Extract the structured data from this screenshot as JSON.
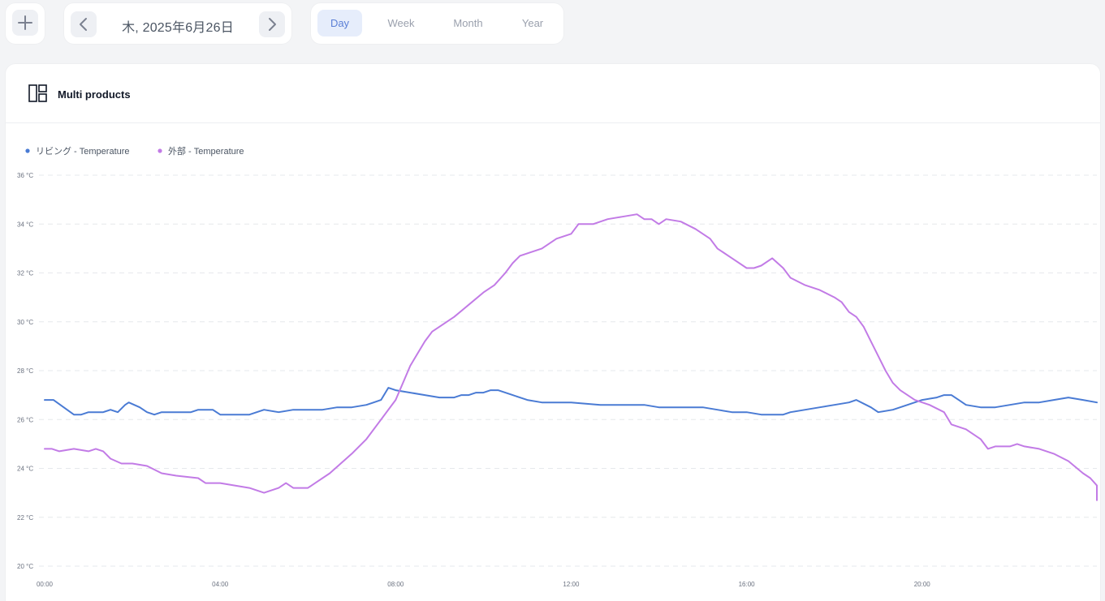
{
  "toolbar": {
    "date_label": "木, 2025年6月26日",
    "tabs": [
      {
        "label": "Day",
        "active": true
      },
      {
        "label": "Week",
        "active": false
      },
      {
        "label": "Month",
        "active": false
      },
      {
        "label": "Year",
        "active": false
      }
    ]
  },
  "panel": {
    "title": "Multi products",
    "icon": "layout-panels-icon"
  },
  "colors": {
    "series_living": "#4a7bd4",
    "series_outside": "#c27be6",
    "grid": "#e6e8ec",
    "active_tab_bg": "#e6edfb"
  },
  "chart_data": {
    "type": "line",
    "x_unit": "hours",
    "y_unit": "°C",
    "xlim": [
      "00:00",
      "23:59"
    ],
    "ylim": [
      20,
      36
    ],
    "x_ticks": [
      "00:00",
      "04:00",
      "08:00",
      "12:00",
      "16:00",
      "20:00"
    ],
    "y_ticks": [
      "20 °C",
      "22 °C",
      "24 °C",
      "26 °C",
      "28 °C",
      "30 °C",
      "32 °C",
      "34 °C",
      "36 °C"
    ],
    "grid": true,
    "legend_position": "top-left",
    "series": [
      {
        "name": "リビング - Temperature",
        "color": "#4a7bd4",
        "points": [
          [
            "00:00",
            26.8
          ],
          [
            "00:12",
            26.8
          ],
          [
            "00:40",
            26.2
          ],
          [
            "00:50",
            26.2
          ],
          [
            "01:00",
            26.3
          ],
          [
            "01:20",
            26.3
          ],
          [
            "01:30",
            26.4
          ],
          [
            "01:40",
            26.3
          ],
          [
            "01:50",
            26.6
          ],
          [
            "01:55",
            26.7
          ],
          [
            "02:10",
            26.5
          ],
          [
            "02:20",
            26.3
          ],
          [
            "02:30",
            26.2
          ],
          [
            "02:40",
            26.3
          ],
          [
            "03:00",
            26.3
          ],
          [
            "03:20",
            26.3
          ],
          [
            "03:30",
            26.4
          ],
          [
            "03:50",
            26.4
          ],
          [
            "04:00",
            26.2
          ],
          [
            "04:40",
            26.2
          ],
          [
            "05:00",
            26.4
          ],
          [
            "05:20",
            26.3
          ],
          [
            "05:40",
            26.4
          ],
          [
            "06:00",
            26.4
          ],
          [
            "06:20",
            26.4
          ],
          [
            "06:40",
            26.5
          ],
          [
            "07:00",
            26.5
          ],
          [
            "07:20",
            26.6
          ],
          [
            "07:30",
            26.7
          ],
          [
            "07:40",
            26.8
          ],
          [
            "07:50",
            27.3
          ],
          [
            "08:00",
            27.2
          ],
          [
            "08:20",
            27.1
          ],
          [
            "08:40",
            27.0
          ],
          [
            "09:00",
            26.9
          ],
          [
            "09:20",
            26.9
          ],
          [
            "09:30",
            27.0
          ],
          [
            "09:40",
            27.0
          ],
          [
            "09:50",
            27.1
          ],
          [
            "10:00",
            27.1
          ],
          [
            "10:10",
            27.2
          ],
          [
            "10:20",
            27.2
          ],
          [
            "10:40",
            27.0
          ],
          [
            "11:00",
            26.8
          ],
          [
            "11:20",
            26.7
          ],
          [
            "12:00",
            26.7
          ],
          [
            "12:40",
            26.6
          ],
          [
            "13:00",
            26.6
          ],
          [
            "13:20",
            26.6
          ],
          [
            "13:40",
            26.6
          ],
          [
            "14:00",
            26.5
          ],
          [
            "14:40",
            26.5
          ],
          [
            "15:00",
            26.5
          ],
          [
            "15:20",
            26.4
          ],
          [
            "15:40",
            26.3
          ],
          [
            "16:00",
            26.3
          ],
          [
            "16:20",
            26.2
          ],
          [
            "16:50",
            26.2
          ],
          [
            "17:00",
            26.3
          ],
          [
            "17:20",
            26.4
          ],
          [
            "17:40",
            26.5
          ],
          [
            "18:00",
            26.6
          ],
          [
            "18:20",
            26.7
          ],
          [
            "18:30",
            26.8
          ],
          [
            "18:50",
            26.5
          ],
          [
            "19:00",
            26.3
          ],
          [
            "19:20",
            26.4
          ],
          [
            "19:40",
            26.6
          ],
          [
            "20:00",
            26.8
          ],
          [
            "20:20",
            26.9
          ],
          [
            "20:30",
            27.0
          ],
          [
            "20:40",
            27.0
          ],
          [
            "20:50",
            26.8
          ],
          [
            "21:00",
            26.6
          ],
          [
            "21:20",
            26.5
          ],
          [
            "21:40",
            26.5
          ],
          [
            "22:00",
            26.6
          ],
          [
            "22:20",
            26.7
          ],
          [
            "22:40",
            26.7
          ],
          [
            "23:00",
            26.8
          ],
          [
            "23:20",
            26.9
          ],
          [
            "23:40",
            26.8
          ],
          [
            "23:59",
            26.7
          ]
        ]
      },
      {
        "name": "外部 - Temperature",
        "color": "#c27be6",
        "points": [
          [
            "00:00",
            24.8
          ],
          [
            "00:10",
            24.8
          ],
          [
            "00:20",
            24.7
          ],
          [
            "00:40",
            24.8
          ],
          [
            "01:00",
            24.7
          ],
          [
            "01:10",
            24.8
          ],
          [
            "01:20",
            24.7
          ],
          [
            "01:30",
            24.4
          ],
          [
            "01:45",
            24.2
          ],
          [
            "02:00",
            24.2
          ],
          [
            "02:20",
            24.1
          ],
          [
            "02:40",
            23.8
          ],
          [
            "03:00",
            23.7
          ],
          [
            "03:30",
            23.6
          ],
          [
            "03:40",
            23.4
          ],
          [
            "04:00",
            23.4
          ],
          [
            "04:20",
            23.3
          ],
          [
            "04:40",
            23.2
          ],
          [
            "05:00",
            23.0
          ],
          [
            "05:20",
            23.2
          ],
          [
            "05:30",
            23.4
          ],
          [
            "05:40",
            23.2
          ],
          [
            "06:00",
            23.2
          ],
          [
            "06:10",
            23.4
          ],
          [
            "06:30",
            23.8
          ],
          [
            "07:00",
            24.6
          ],
          [
            "07:20",
            25.2
          ],
          [
            "07:40",
            26.0
          ],
          [
            "08:00",
            26.8
          ],
          [
            "08:10",
            27.5
          ],
          [
            "08:20",
            28.2
          ],
          [
            "08:30",
            28.7
          ],
          [
            "08:40",
            29.2
          ],
          [
            "08:50",
            29.6
          ],
          [
            "09:00",
            29.8
          ],
          [
            "09:20",
            30.2
          ],
          [
            "09:40",
            30.7
          ],
          [
            "10:00",
            31.2
          ],
          [
            "10:15",
            31.5
          ],
          [
            "10:30",
            32.0
          ],
          [
            "10:40",
            32.4
          ],
          [
            "10:50",
            32.7
          ],
          [
            "11:00",
            32.8
          ],
          [
            "11:20",
            33.0
          ],
          [
            "11:40",
            33.4
          ],
          [
            "12:00",
            33.6
          ],
          [
            "12:10",
            34.0
          ],
          [
            "12:30",
            34.0
          ],
          [
            "12:50",
            34.2
          ],
          [
            "13:10",
            34.3
          ],
          [
            "13:30",
            34.4
          ],
          [
            "13:40",
            34.2
          ],
          [
            "13:50",
            34.2
          ],
          [
            "14:00",
            34.0
          ],
          [
            "14:10",
            34.2
          ],
          [
            "14:30",
            34.1
          ],
          [
            "14:50",
            33.8
          ],
          [
            "15:10",
            33.4
          ],
          [
            "15:20",
            33.0
          ],
          [
            "15:40",
            32.6
          ],
          [
            "16:00",
            32.2
          ],
          [
            "16:10",
            32.2
          ],
          [
            "16:20",
            32.3
          ],
          [
            "16:35",
            32.6
          ],
          [
            "16:50",
            32.2
          ],
          [
            "17:00",
            31.8
          ],
          [
            "17:20",
            31.5
          ],
          [
            "17:40",
            31.3
          ],
          [
            "18:00",
            31.0
          ],
          [
            "18:10",
            30.8
          ],
          [
            "18:20",
            30.4
          ],
          [
            "18:30",
            30.2
          ],
          [
            "18:40",
            29.8
          ],
          [
            "18:50",
            29.2
          ],
          [
            "19:00",
            28.6
          ],
          [
            "19:10",
            28.0
          ],
          [
            "19:20",
            27.5
          ],
          [
            "19:30",
            27.2
          ],
          [
            "19:40",
            27.0
          ],
          [
            "19:50",
            26.8
          ],
          [
            "20:10",
            26.6
          ],
          [
            "20:30",
            26.3
          ],
          [
            "20:40",
            25.8
          ],
          [
            "21:00",
            25.6
          ],
          [
            "21:20",
            25.2
          ],
          [
            "21:30",
            24.8
          ],
          [
            "21:40",
            24.9
          ],
          [
            "22:00",
            24.9
          ],
          [
            "22:10",
            25.0
          ],
          [
            "22:20",
            24.9
          ],
          [
            "22:40",
            24.8
          ],
          [
            "23:00",
            24.6
          ],
          [
            "23:20",
            24.3
          ],
          [
            "23:40",
            23.8
          ],
          [
            "23:50",
            23.6
          ],
          [
            "24:10",
            23.3
          ],
          [
            "24:40",
            22.9
          ],
          [
            "24:59",
            22.7
          ]
        ]
      }
    ]
  }
}
